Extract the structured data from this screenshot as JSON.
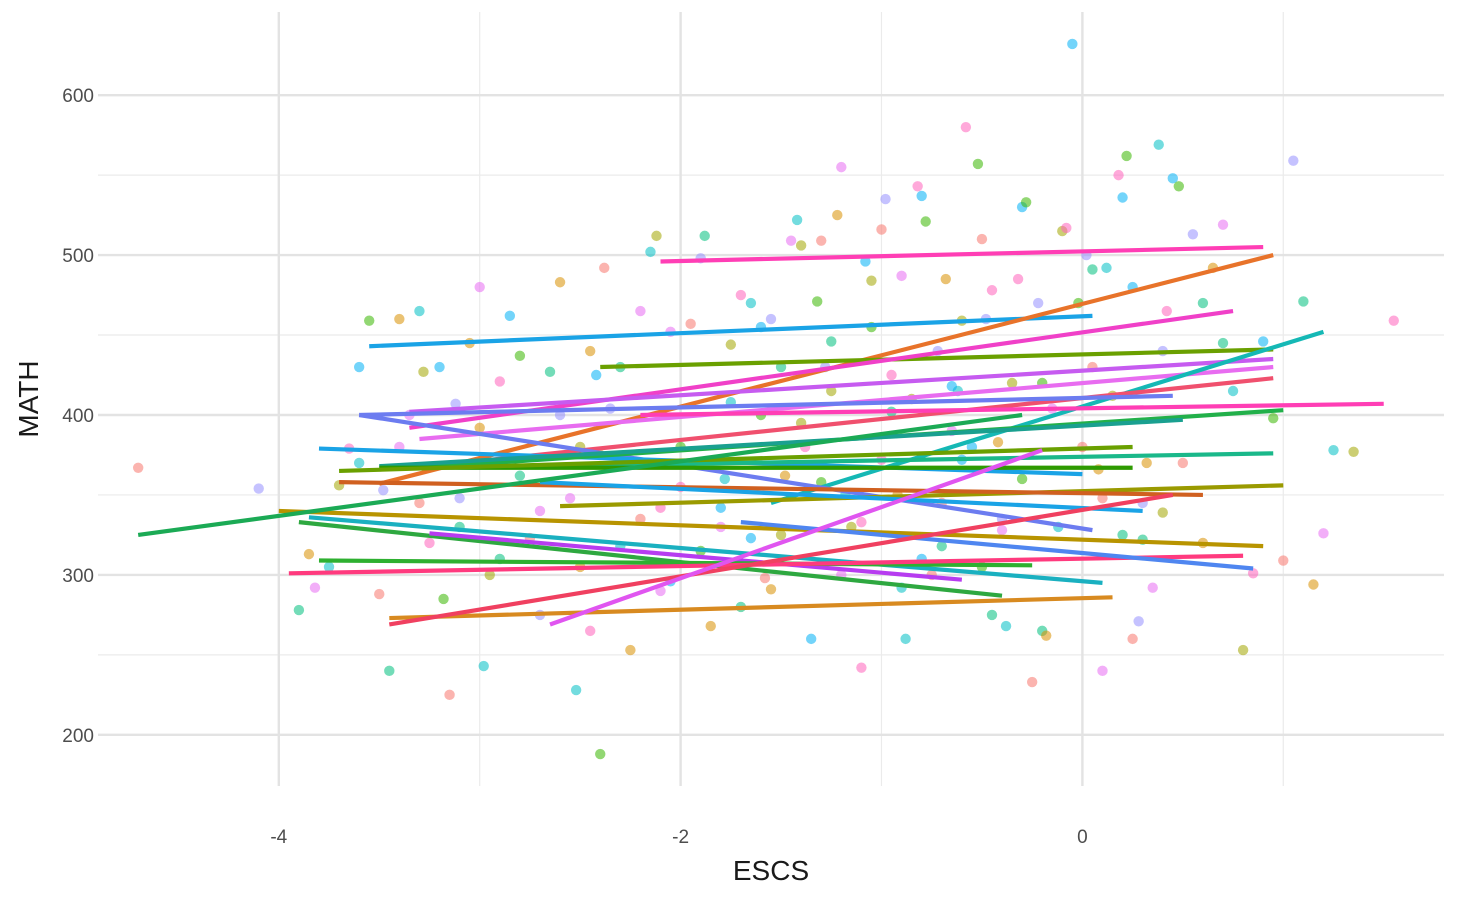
{
  "chart_data": {
    "type": "scatter",
    "title": "",
    "xlabel": "ESCS",
    "ylabel": "MATH",
    "xlim": [
      -4.9,
      1.8
    ],
    "ylim": [
      168,
      652
    ],
    "x_major_ticks": [
      -4,
      -2,
      0
    ],
    "x_minor_ticks": [
      -5,
      -3,
      -1,
      1
    ],
    "x_tick_labels": [
      "-4",
      "-2",
      "0"
    ],
    "y_major_ticks": [
      200,
      300,
      400,
      500,
      600
    ],
    "y_minor_ticks": [
      250,
      350,
      450,
      550
    ],
    "y_tick_labels": [
      "200",
      "300",
      "400",
      "500",
      "600"
    ],
    "grid": true,
    "legend": "none",
    "points": [
      [
        -4.7,
        367
      ],
      [
        -4.1,
        354
      ],
      [
        -3.9,
        278
      ],
      [
        -3.85,
        313
      ],
      [
        -3.82,
        292
      ],
      [
        -3.75,
        305
      ],
      [
        -3.7,
        356
      ],
      [
        -3.65,
        379
      ],
      [
        -3.6,
        430
      ],
      [
        -3.55,
        459
      ],
      [
        -3.5,
        288
      ],
      [
        -3.48,
        353
      ],
      [
        -3.45,
        240
      ],
      [
        -3.4,
        460
      ],
      [
        -3.35,
        400
      ],
      [
        -3.3,
        465
      ],
      [
        -3.28,
        427
      ],
      [
        -3.25,
        320
      ],
      [
        -3.2,
        430
      ],
      [
        -3.18,
        285
      ],
      [
        -3.15,
        225
      ],
      [
        -3.12,
        407
      ],
      [
        -3.1,
        330
      ],
      [
        -3.05,
        445
      ],
      [
        -3.0,
        480
      ],
      [
        -2.98,
        243
      ],
      [
        -2.95,
        300
      ],
      [
        -2.9,
        421
      ],
      [
        -2.85,
        462
      ],
      [
        -2.8,
        437
      ],
      [
        -2.75,
        323
      ],
      [
        -2.7,
        275
      ],
      [
        -2.65,
        427
      ],
      [
        -2.6,
        483
      ],
      [
        -2.55,
        348
      ],
      [
        -2.52,
        228
      ],
      [
        -2.5,
        380
      ],
      [
        -2.45,
        265
      ],
      [
        -2.42,
        425
      ],
      [
        -2.4,
        188
      ],
      [
        -2.38,
        492
      ],
      [
        -2.35,
        404
      ],
      [
        -2.3,
        430
      ],
      [
        -2.25,
        253
      ],
      [
        -2.2,
        465
      ],
      [
        -2.15,
        502
      ],
      [
        -2.12,
        512
      ],
      [
        -2.1,
        342
      ],
      [
        -2.05,
        296
      ],
      [
        -2.0,
        380
      ],
      [
        -1.95,
        457
      ],
      [
        -1.9,
        498
      ],
      [
        -1.88,
        512
      ],
      [
        -1.85,
        268
      ],
      [
        -1.8,
        330
      ],
      [
        -1.78,
        360
      ],
      [
        -1.75,
        444
      ],
      [
        -1.7,
        475
      ],
      [
        -1.65,
        323
      ],
      [
        -1.6,
        400
      ],
      [
        -1.58,
        298
      ],
      [
        -1.55,
        460
      ],
      [
        -1.5,
        430
      ],
      [
        -1.48,
        362
      ],
      [
        -1.45,
        509
      ],
      [
        -1.42,
        522
      ],
      [
        -1.4,
        506
      ],
      [
        -1.38,
        380
      ],
      [
        -1.35,
        260
      ],
      [
        -1.32,
        471
      ],
      [
        -1.3,
        509
      ],
      [
        -1.28,
        430
      ],
      [
        -1.25,
        446
      ],
      [
        -1.22,
        525
      ],
      [
        -1.2,
        555
      ],
      [
        -1.18,
        350
      ],
      [
        -1.15,
        330
      ],
      [
        -1.1,
        242
      ],
      [
        -1.08,
        496
      ],
      [
        -1.05,
        455
      ],
      [
        -1.0,
        516
      ],
      [
        -0.98,
        535
      ],
      [
        -0.95,
        402
      ],
      [
        -0.92,
        350
      ],
      [
        -0.9,
        487
      ],
      [
        -0.88,
        260
      ],
      [
        -0.85,
        410
      ],
      [
        -0.82,
        543
      ],
      [
        -0.8,
        537
      ],
      [
        -0.78,
        521
      ],
      [
        -0.75,
        300
      ],
      [
        -0.72,
        440
      ],
      [
        -0.7,
        318
      ],
      [
        -0.68,
        485
      ],
      [
        -0.65,
        390
      ],
      [
        -0.62,
        415
      ],
      [
        -0.6,
        459
      ],
      [
        -0.58,
        580
      ],
      [
        -0.55,
        380
      ],
      [
        -0.52,
        557
      ],
      [
        -0.5,
        510
      ],
      [
        -0.48,
        460
      ],
      [
        -0.45,
        275
      ],
      [
        -0.42,
        383
      ],
      [
        -0.4,
        328
      ],
      [
        -0.38,
        268
      ],
      [
        -0.35,
        420
      ],
      [
        -0.32,
        485
      ],
      [
        -0.3,
        530
      ],
      [
        -0.28,
        533
      ],
      [
        -0.25,
        233
      ],
      [
        -0.22,
        470
      ],
      [
        -0.2,
        265
      ],
      [
        -0.18,
        262
      ],
      [
        -0.15,
        404
      ],
      [
        -0.12,
        330
      ],
      [
        -0.1,
        515
      ],
      [
        -0.08,
        517
      ],
      [
        -0.05,
        632
      ],
      [
        -0.02,
        470
      ],
      [
        0.0,
        380
      ],
      [
        0.02,
        500
      ],
      [
        0.05,
        491
      ],
      [
        0.08,
        366
      ],
      [
        0.1,
        240
      ],
      [
        0.12,
        492
      ],
      [
        0.15,
        412
      ],
      [
        0.18,
        550
      ],
      [
        0.2,
        536
      ],
      [
        0.22,
        562
      ],
      [
        0.25,
        260
      ],
      [
        0.28,
        271
      ],
      [
        0.3,
        322
      ],
      [
        0.32,
        370
      ],
      [
        0.35,
        292
      ],
      [
        0.38,
        569
      ],
      [
        0.4,
        339
      ],
      [
        0.42,
        465
      ],
      [
        0.45,
        548
      ],
      [
        0.48,
        543
      ],
      [
        0.5,
        370
      ],
      [
        0.55,
        513
      ],
      [
        0.6,
        470
      ],
      [
        0.65,
        492
      ],
      [
        0.7,
        519
      ],
      [
        0.75,
        415
      ],
      [
        0.8,
        253
      ],
      [
        0.85,
        301
      ],
      [
        0.9,
        446
      ],
      [
        0.95,
        398
      ],
      [
        1.0,
        309
      ],
      [
        1.05,
        559
      ],
      [
        1.1,
        471
      ],
      [
        1.15,
        294
      ],
      [
        1.2,
        326
      ],
      [
        1.25,
        378
      ],
      [
        1.35,
        377
      ],
      [
        1.55,
        459
      ],
      [
        -1.6,
        455
      ],
      [
        -1.9,
        315
      ],
      [
        -2.2,
        335
      ],
      [
        -2.6,
        400
      ],
      [
        -2.8,
        362
      ],
      [
        -3.0,
        392
      ],
      [
        -3.4,
        380
      ],
      [
        -3.6,
        370
      ],
      [
        -1.4,
        395
      ],
      [
        -1.0,
        372
      ],
      [
        -0.6,
        372
      ],
      [
        -0.3,
        360
      ],
      [
        0.1,
        348
      ],
      [
        0.3,
        345
      ],
      [
        -1.7,
        280
      ],
      [
        -1.55,
        291
      ],
      [
        -1.2,
        300
      ],
      [
        -0.9,
        292
      ],
      [
        -2.4,
        375
      ],
      [
        -2.0,
        355
      ],
      [
        -1.8,
        342
      ],
      [
        -1.3,
        358
      ],
      [
        -0.7,
        345
      ],
      [
        -0.4,
        335
      ],
      [
        0.2,
        325
      ],
      [
        0.6,
        320
      ],
      [
        -2.7,
        340
      ],
      [
        -2.3,
        318
      ],
      [
        -1.5,
        325
      ],
      [
        -1.1,
        333
      ],
      [
        -0.8,
        310
      ],
      [
        -0.5,
        305
      ],
      [
        -3.3,
        345
      ],
      [
        -3.1,
        348
      ],
      [
        -2.9,
        310
      ],
      [
        -2.5,
        305
      ],
      [
        -2.1,
        290
      ],
      [
        -1.75,
        408
      ],
      [
        -1.25,
        415
      ],
      [
        -0.95,
        425
      ],
      [
        -0.65,
        418
      ],
      [
        -0.2,
        420
      ],
      [
        0.05,
        430
      ],
      [
        0.4,
        440
      ],
      [
        0.7,
        445
      ],
      [
        -2.45,
        440
      ],
      [
        -2.05,
        452
      ],
      [
        -1.65,
        470
      ],
      [
        -1.05,
        484
      ],
      [
        -0.45,
        478
      ],
      [
        0.25,
        480
      ]
    ],
    "point_colors": [
      "#F8766D",
      "#D89000",
      "#A3A500",
      "#39B600",
      "#00BF7D",
      "#00BFC4",
      "#00B0F6",
      "#9590FF",
      "#E76BF3",
      "#FF62BC"
    ],
    "series": [
      {
        "x": [
          -3.55,
          0.05
        ],
        "y": [
          443,
          462
        ],
        "color": "#1AA3E6"
      },
      {
        "x": [
          -2.1,
          0.9
        ],
        "y": [
          496,
          505
        ],
        "color": "#FF3EB5"
      },
      {
        "x": [
          -3.5,
          0.95
        ],
        "y": [
          357,
          500
        ],
        "color": "#E8732A"
      },
      {
        "x": [
          -2.4,
          0.95
        ],
        "y": [
          430,
          441
        ],
        "color": "#6AA000"
      },
      {
        "x": [
          -3.35,
          0.75
        ],
        "y": [
          392,
          465
        ],
        "color": "#F040C8"
      },
      {
        "x": [
          -3.35,
          0.95
        ],
        "y": [
          402,
          435
        ],
        "color": "#C65BF0"
      },
      {
        "x": [
          -3.3,
          0.95
        ],
        "y": [
          385,
          430
        ],
        "color": "#E86CF0"
      },
      {
        "x": [
          -1.55,
          1.2
        ],
        "y": [
          345,
          452
        ],
        "color": "#15B8B5"
      },
      {
        "x": [
          -3.1,
          0.95
        ],
        "y": [
          370,
          423
        ],
        "color": "#F0506E"
      },
      {
        "x": [
          -2.2,
          1.5
        ],
        "y": [
          400,
          407
        ],
        "color": "#FF3EB5"
      },
      {
        "x": [
          -3.6,
          0.45
        ],
        "y": [
          400,
          412
        ],
        "color": "#6C7CF0"
      },
      {
        "x": [
          -3.6,
          0.05
        ],
        "y": [
          400,
          328
        ],
        "color": "#6C7CF0"
      },
      {
        "x": [
          -3.8,
          0.0
        ],
        "y": [
          379,
          363
        ],
        "color": "#1AA3E6"
      },
      {
        "x": [
          -3.3,
          1.0
        ],
        "y": [
          367,
          403
        ],
        "color": "#22B04A"
      },
      {
        "x": [
          -3.5,
          0.5
        ],
        "y": [
          368,
          397
        ],
        "color": "#1AA090"
      },
      {
        "x": [
          -2.6,
          0.95
        ],
        "y": [
          368,
          376
        ],
        "color": "#1AB88A"
      },
      {
        "x": [
          -3.5,
          0.25
        ],
        "y": [
          367,
          367
        ],
        "color": "#2E9A00"
      },
      {
        "x": [
          -3.7,
          0.25
        ],
        "y": [
          365,
          380
        ],
        "color": "#6AA000"
      },
      {
        "x": [
          -2.6,
          1.0
        ],
        "y": [
          343,
          356
        ],
        "color": "#9A9A00"
      },
      {
        "x": [
          -3.7,
          0.6
        ],
        "y": [
          358,
          350
        ],
        "color": "#D06020"
      },
      {
        "x": [
          -2.7,
          0.3
        ],
        "y": [
          358,
          340
        ],
        "color": "#1AA3E6"
      },
      {
        "x": [
          -4.0,
          0.9
        ],
        "y": [
          340,
          318
        ],
        "color": "#B89400"
      },
      {
        "x": [
          -3.9,
          -0.4
        ],
        "y": [
          333,
          287
        ],
        "color": "#2EA840"
      },
      {
        "x": [
          -3.85,
          0.1
        ],
        "y": [
          336,
          295
        ],
        "color": "#1AB0C0"
      },
      {
        "x": [
          -3.25,
          -0.6
        ],
        "y": [
          326,
          297
        ],
        "color": "#B73CF0"
      },
      {
        "x": [
          -3.8,
          -0.25
        ],
        "y": [
          309,
          306
        ],
        "color": "#2EB030"
      },
      {
        "x": [
          -3.95,
          0.8
        ],
        "y": [
          301,
          312
        ],
        "color": "#FF3A7E"
      },
      {
        "x": [
          -1.7,
          0.85
        ],
        "y": [
          333,
          304
        ],
        "color": "#4F86F0"
      },
      {
        "x": [
          -3.45,
          0.15
        ],
        "y": [
          273,
          286
        ],
        "color": "#D88A20"
      },
      {
        "x": [
          -3.45,
          0.45
        ],
        "y": [
          269,
          350
        ],
        "color": "#F04060"
      },
      {
        "x": [
          -2.65,
          -0.2
        ],
        "y": [
          269,
          378
        ],
        "color": "#E055F0"
      },
      {
        "x": [
          -4.7,
          -0.3
        ],
        "y": [
          325,
          400
        ],
        "color": "#1BAA55"
      }
    ]
  }
}
